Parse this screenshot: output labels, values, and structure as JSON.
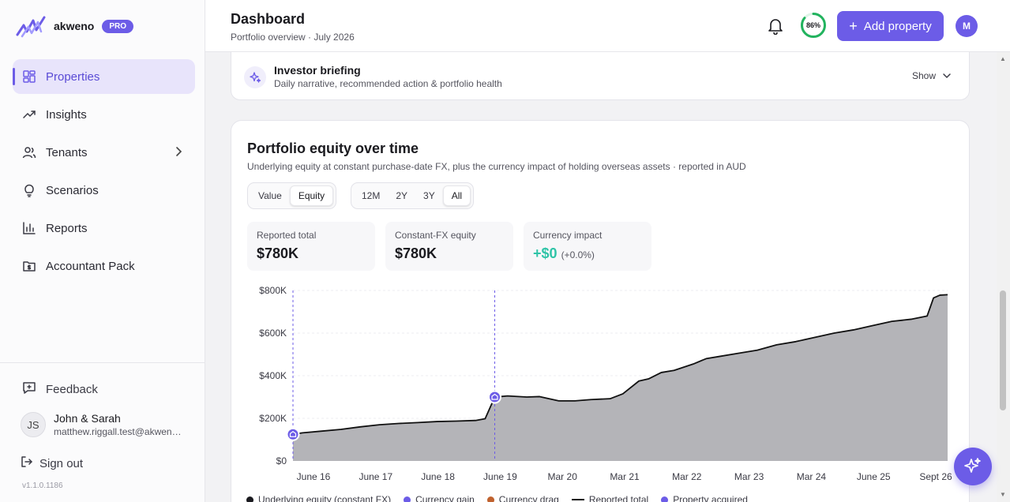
{
  "brand": {
    "name": "akweno",
    "badge": "PRO"
  },
  "sidebar": {
    "items": [
      {
        "label": "Properties",
        "icon": "grid-icon",
        "active": true
      },
      {
        "label": "Insights",
        "icon": "trending-up-icon"
      },
      {
        "label": "Tenants",
        "icon": "users-icon",
        "has_children": true
      },
      {
        "label": "Scenarios",
        "icon": "lightbulb-icon"
      },
      {
        "label": "Reports",
        "icon": "bar-chart-icon"
      },
      {
        "label": "Accountant Pack",
        "icon": "folder-dollar-icon"
      }
    ],
    "feedback_label": "Feedback",
    "user": {
      "initials": "JS",
      "name": "John & Sarah",
      "email": "matthew.riggall.test@akweno.com"
    },
    "signout_label": "Sign out",
    "version": "v1.1.0.1186"
  },
  "header": {
    "title": "Dashboard",
    "subtitle": "Portfolio overview · July 2026",
    "score": "86%",
    "score_value": 86,
    "add_label": "Add property",
    "avatar_initial": "M"
  },
  "briefing": {
    "title": "Investor briefing",
    "subtitle": "Daily narrative, recommended action & portfolio health",
    "toggle_label": "Show"
  },
  "equity_card": {
    "title": "Portfolio equity over time",
    "subtitle": "Underlying equity at constant purchase-date FX, plus the currency impact of holding overseas assets · reported in AUD",
    "view_toggle": [
      "Value",
      "Equity"
    ],
    "view_selected": "Equity",
    "range_toggle": [
      "12M",
      "2Y",
      "3Y",
      "All"
    ],
    "range_selected": "All",
    "stats": [
      {
        "label": "Reported total",
        "value": "$780K"
      },
      {
        "label": "Constant-FX equity",
        "value": "$780K"
      },
      {
        "label": "Currency impact",
        "value": "+$0",
        "pct": "(+0.0%)"
      }
    ],
    "legend": [
      {
        "label": "Underlying equity (constant FX)",
        "color": "#1a1a1f",
        "kind": "dot"
      },
      {
        "label": "Currency gain",
        "color": "#6c5ce7",
        "kind": "dot"
      },
      {
        "label": "Currency drag",
        "color": "#c0622e",
        "kind": "dot"
      },
      {
        "label": "Reported total",
        "color": "#111111",
        "kind": "line"
      },
      {
        "label": "Property acquired",
        "color": "#6c5ce7",
        "kind": "marker"
      }
    ]
  },
  "colors": {
    "accent": "#6c5ce7",
    "positive": "#2ec4a7",
    "area": "#b4b4b8"
  },
  "chart_data": {
    "type": "area",
    "title": "Portfolio equity over time",
    "x_ticks": [
      "June 16",
      "June 17",
      "June 18",
      "June 19",
      "Mar 20",
      "Mar 21",
      "Mar 22",
      "Mar 23",
      "Mar 24",
      "June 25",
      "Sept 26"
    ],
    "y_ticks": [
      "$800K",
      "$600K",
      "$400K",
      "$200K",
      "$0"
    ],
    "ylim": [
      0,
      800000
    ],
    "x_range": [
      2016.45,
      2026.67
    ],
    "series": [
      {
        "name": "Reported total",
        "points": [
          [
            2016.45,
            125000
          ],
          [
            2016.6,
            132000
          ],
          [
            2016.9,
            140000
          ],
          [
            2017.2,
            148000
          ],
          [
            2017.5,
            160000
          ],
          [
            2017.8,
            170000
          ],
          [
            2018.1,
            176000
          ],
          [
            2018.4,
            180000
          ],
          [
            2018.7,
            185000
          ],
          [
            2019.0,
            187000
          ],
          [
            2019.3,
            190000
          ],
          [
            2019.45,
            198000
          ],
          [
            2019.6,
            300000
          ],
          [
            2019.8,
            305000
          ],
          [
            2020.1,
            300000
          ],
          [
            2020.3,
            302000
          ],
          [
            2020.6,
            282000
          ],
          [
            2020.85,
            282000
          ],
          [
            2021.1,
            288000
          ],
          [
            2021.4,
            292000
          ],
          [
            2021.6,
            315000
          ],
          [
            2021.85,
            375000
          ],
          [
            2022.0,
            385000
          ],
          [
            2022.2,
            415000
          ],
          [
            2022.4,
            425000
          ],
          [
            2022.7,
            455000
          ],
          [
            2022.9,
            480000
          ],
          [
            2023.1,
            490000
          ],
          [
            2023.4,
            505000
          ],
          [
            2023.7,
            520000
          ],
          [
            2024.0,
            545000
          ],
          [
            2024.3,
            560000
          ],
          [
            2024.6,
            580000
          ],
          [
            2024.9,
            600000
          ],
          [
            2025.2,
            615000
          ],
          [
            2025.5,
            635000
          ],
          [
            2025.8,
            655000
          ],
          [
            2026.1,
            665000
          ],
          [
            2026.35,
            680000
          ],
          [
            2026.45,
            765000
          ],
          [
            2026.55,
            778000
          ],
          [
            2026.67,
            780000
          ]
        ]
      }
    ],
    "acquisitions": [
      [
        2016.45,
        125000
      ],
      [
        2019.6,
        300000
      ]
    ],
    "grid": true
  }
}
